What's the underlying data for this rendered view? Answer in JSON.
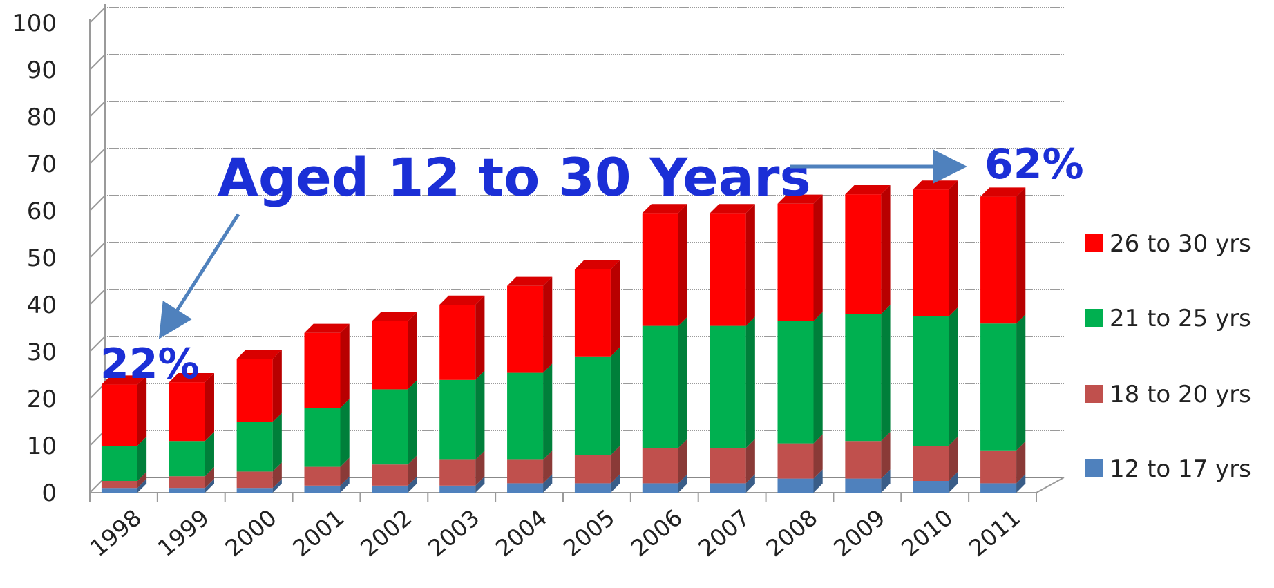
{
  "chart_data": {
    "type": "bar",
    "stacked": true,
    "style": "3d-column",
    "categories": [
      "1998",
      "1999",
      "2000",
      "2001",
      "2002",
      "2003",
      "2004",
      "2005",
      "2006",
      "2007",
      "2008",
      "2009",
      "2010",
      "2011"
    ],
    "series": [
      {
        "name": "12 to 17 yrs",
        "color": "#4f81bd",
        "values": [
          1,
          1,
          1,
          1.5,
          1.5,
          1.5,
          2,
          2,
          2,
          2,
          3,
          3,
          2.5,
          2
        ]
      },
      {
        "name": "18 to 20 yrs",
        "color": "#c0504d",
        "values": [
          1.5,
          2.5,
          3.5,
          4,
          4.5,
          5.5,
          5,
          6,
          7.5,
          7.5,
          7.5,
          8,
          7.5,
          7
        ]
      },
      {
        "name": "21 to 25 yrs",
        "color": "#00b050",
        "values": [
          7.5,
          7.5,
          10.5,
          12.5,
          16,
          17,
          18.5,
          21,
          26,
          26,
          26,
          27,
          27.5,
          27
        ]
      },
      {
        "name": "26 to 30 yrs",
        "color": "#ff0000",
        "values": [
          13,
          12.5,
          13.5,
          16,
          14.5,
          16,
          18.5,
          18.5,
          24,
          24,
          25,
          25.5,
          27,
          27
        ]
      }
    ],
    "ylim": [
      0,
      100
    ],
    "yticks": [
      "0",
      "10",
      "20",
      "30",
      "40",
      "50",
      "60",
      "70",
      "80",
      "90",
      "100"
    ],
    "grid": true,
    "legend_position": "right",
    "annotations": {
      "title": "Aged 12 to 30 Years",
      "start_pct": "22%",
      "end_pct": "62%"
    }
  }
}
